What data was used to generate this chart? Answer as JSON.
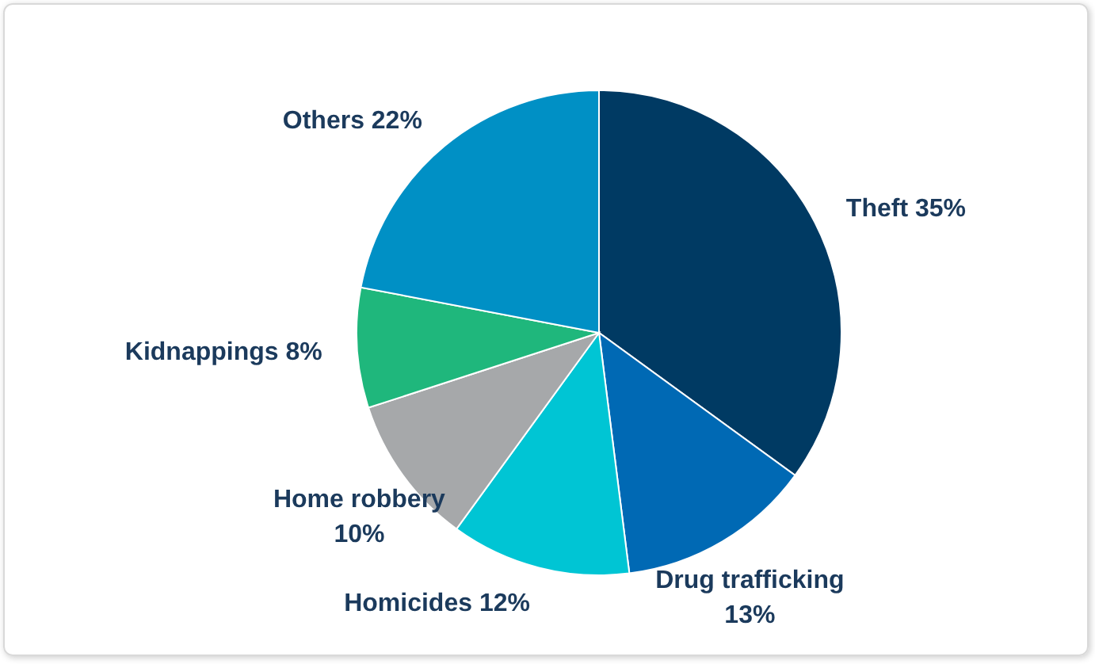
{
  "chart_data": {
    "type": "pie",
    "categories": [
      "Theft",
      "Drug trafficking",
      "Homicides",
      "Home robbery",
      "Kidnappings",
      "Others"
    ],
    "values": [
      35,
      13,
      12,
      10,
      8,
      22
    ],
    "value_labels": [
      "35%",
      "13%",
      "12%",
      "10%",
      "8%",
      "22%"
    ],
    "colors": [
      "#003a63",
      "#0069b4",
      "#00c5d4",
      "#a6a8aa",
      "#1fb77c",
      "#0090c5"
    ],
    "legend": false
  }
}
